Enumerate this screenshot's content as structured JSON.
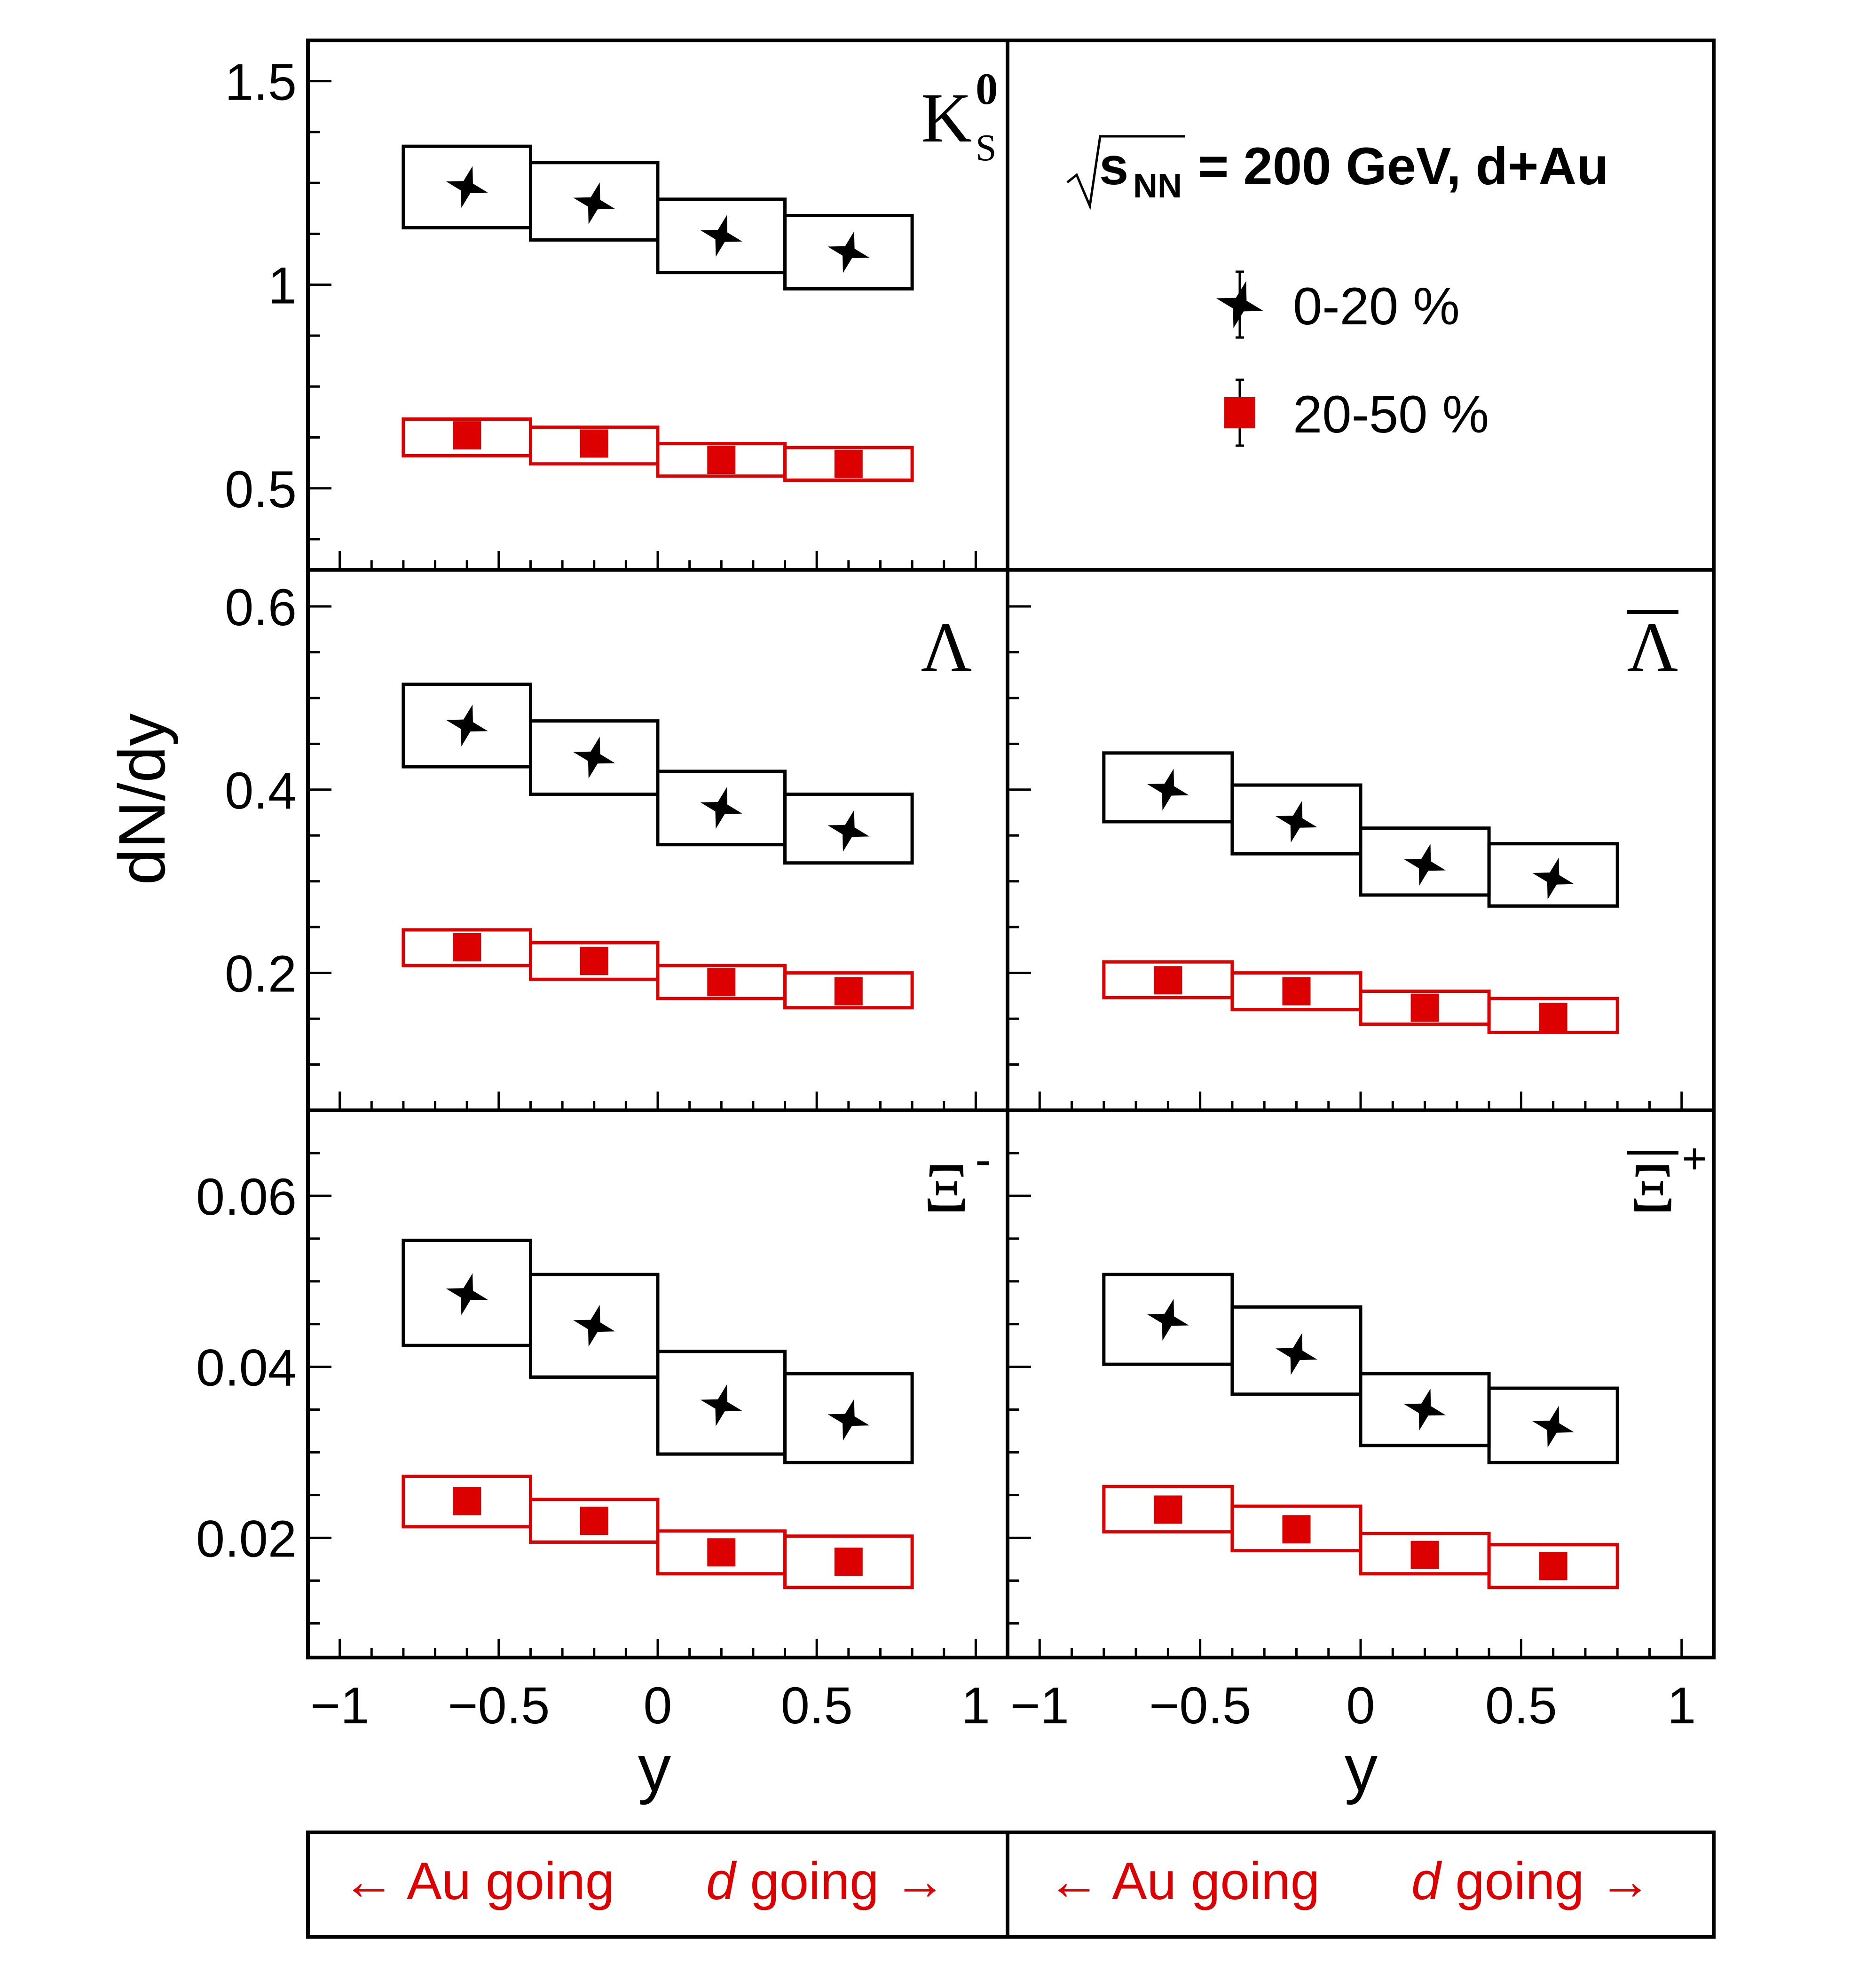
{
  "y_axis_label": "dN/dy",
  "x_axis_label": "y",
  "x_tick_labels": [
    "−1",
    "−0.5",
    "0",
    "0.5",
    "1"
  ],
  "header": {
    "sqrt_label": "s",
    "sqrt_subscript": "NN",
    "energy_rest": "= 200 GeV, d+Au"
  },
  "legend": [
    {
      "label": "0-20 %",
      "marker": "star",
      "color": "#000000"
    },
    {
      "label": "20-50 %",
      "marker": "square",
      "color": "#dd0000"
    }
  ],
  "footer": {
    "au_going": "← Au going",
    "d_italic": "d",
    "d_going_rest": " going →"
  },
  "colors": {
    "central": "#000000",
    "peripheral": "#dd0000"
  },
  "chart_data": [
    {
      "type": "scatter",
      "panel": "K0S",
      "label_main": "K",
      "label_sup": "0",
      "label_sub": "S",
      "xlim": [
        -1.1,
        1.1
      ],
      "ylim": [
        0.3,
        1.6
      ],
      "yticks": [
        0.5,
        1,
        1.5
      ],
      "ytick_labels": [
        "0.5",
        "1",
        "1.5"
      ],
      "bin_edges": [
        -0.8,
        -0.4,
        0,
        0.4,
        0.8
      ],
      "series": [
        {
          "name": "0-20 %",
          "x": [
            -0.6,
            -0.2,
            0.2,
            0.6
          ],
          "values": [
            1.24,
            1.2,
            1.12,
            1.08
          ],
          "sys_low": [
            1.14,
            1.11,
            1.03,
            0.99
          ],
          "sys_high": [
            1.34,
            1.3,
            1.21,
            1.17
          ]
        },
        {
          "name": "20-50 %",
          "x": [
            -0.6,
            -0.2,
            0.2,
            0.6
          ],
          "values": [
            0.63,
            0.61,
            0.57,
            0.56
          ],
          "sys_low": [
            0.58,
            0.56,
            0.53,
            0.52
          ],
          "sys_high": [
            0.67,
            0.65,
            0.61,
            0.6
          ]
        }
      ]
    },
    {
      "type": "scatter",
      "panel": "Lambda",
      "label_main": "Λ",
      "xlim": [
        -1.1,
        1.1
      ],
      "ylim": [
        0.05,
        0.64
      ],
      "yticks": [
        0.2,
        0.4,
        0.6
      ],
      "ytick_labels": [
        "0.2",
        "0.4",
        "0.6"
      ],
      "bin_edges": [
        -0.8,
        -0.4,
        0,
        0.4,
        0.8
      ],
      "series": [
        {
          "name": "0-20 %",
          "x": [
            -0.6,
            -0.2,
            0.2,
            0.6
          ],
          "values": [
            0.47,
            0.435,
            0.38,
            0.355
          ],
          "sys_low": [
            0.425,
            0.395,
            0.34,
            0.32
          ],
          "sys_high": [
            0.515,
            0.475,
            0.42,
            0.395
          ]
        },
        {
          "name": "20-50 %",
          "x": [
            -0.6,
            -0.2,
            0.2,
            0.6
          ],
          "values": [
            0.228,
            0.213,
            0.19,
            0.18
          ],
          "sys_low": [
            0.208,
            0.193,
            0.172,
            0.162
          ],
          "sys_high": [
            0.247,
            0.233,
            0.208,
            0.2
          ]
        }
      ]
    },
    {
      "type": "scatter",
      "panel": "AntiLambda",
      "label_main": "Λ",
      "label_overline": true,
      "xlim": [
        -1.1,
        1.1
      ],
      "ylim": [
        0.05,
        0.64
      ],
      "yticks": [
        0.2,
        0.4,
        0.6
      ],
      "ytick_labels": [
        "0.2",
        "0.4",
        "0.6"
      ],
      "bin_edges": [
        -0.8,
        -0.4,
        0,
        0.4,
        0.8
      ],
      "series": [
        {
          "name": "0-20 %",
          "x": [
            -0.6,
            -0.2,
            0.2,
            0.6
          ],
          "values": [
            0.4,
            0.365,
            0.318,
            0.303
          ],
          "sys_low": [
            0.365,
            0.33,
            0.285,
            0.273
          ],
          "sys_high": [
            0.44,
            0.405,
            0.358,
            0.341
          ]
        },
        {
          "name": "20-50 %",
          "x": [
            -0.6,
            -0.2,
            0.2,
            0.6
          ],
          "values": [
            0.192,
            0.18,
            0.162,
            0.152
          ],
          "sys_low": [
            0.173,
            0.16,
            0.144,
            0.135
          ],
          "sys_high": [
            0.212,
            0.2,
            0.18,
            0.172
          ]
        }
      ]
    },
    {
      "type": "scatter",
      "panel": "XiMinus",
      "label_main": "Ξ",
      "label_sup": "-",
      "xlim": [
        -1.1,
        1.1
      ],
      "ylim": [
        0.006,
        0.07
      ],
      "yticks": [
        0.02,
        0.04,
        0.06
      ],
      "ytick_labels": [
        "0.02",
        "0.04",
        "0.06"
      ],
      "bin_edges": [
        -0.8,
        -0.4,
        0,
        0.4,
        0.8
      ],
      "series": [
        {
          "name": "0-20 %",
          "x": [
            -0.6,
            -0.2,
            0.2,
            0.6
          ],
          "values": [
            0.0485,
            0.0448,
            0.0355,
            0.0338
          ],
          "sys_low": [
            0.0425,
            0.0388,
            0.0298,
            0.0288
          ],
          "sys_high": [
            0.0548,
            0.0508,
            0.0418,
            0.0392
          ]
        },
        {
          "name": "20-50 %",
          "x": [
            -0.6,
            -0.2,
            0.2,
            0.6
          ],
          "values": [
            0.0243,
            0.022,
            0.0183,
            0.0172
          ],
          "sys_low": [
            0.0213,
            0.0195,
            0.0158,
            0.0142
          ],
          "sys_high": [
            0.0272,
            0.0245,
            0.0208,
            0.0202
          ]
        }
      ]
    },
    {
      "type": "scatter",
      "panel": "AntiXiPlus",
      "label_main": "Ξ",
      "label_sup": "+",
      "label_overline": true,
      "xlim": [
        -1.1,
        1.1
      ],
      "ylim": [
        0.006,
        0.07
      ],
      "yticks": [
        0.02,
        0.04,
        0.06
      ],
      "ytick_labels": [
        "0.02",
        "0.04",
        "0.06"
      ],
      "bin_edges": [
        -0.8,
        -0.4,
        0,
        0.4,
        0.8
      ],
      "series": [
        {
          "name": "0-20 %",
          "x": [
            -0.6,
            -0.2,
            0.2,
            0.6
          ],
          "values": [
            0.0455,
            0.0415,
            0.035,
            0.033
          ],
          "sys_low": [
            0.0403,
            0.0368,
            0.0308,
            0.0288
          ],
          "sys_high": [
            0.0508,
            0.047,
            0.0392,
            0.0375
          ]
        },
        {
          "name": "20-50 %",
          "x": [
            -0.6,
            -0.2,
            0.2,
            0.6
          ],
          "values": [
            0.0233,
            0.021,
            0.018,
            0.0167
          ],
          "sys_low": [
            0.0207,
            0.0185,
            0.0158,
            0.0142
          ],
          "sys_high": [
            0.026,
            0.0237,
            0.0205,
            0.0192
          ]
        }
      ]
    }
  ]
}
